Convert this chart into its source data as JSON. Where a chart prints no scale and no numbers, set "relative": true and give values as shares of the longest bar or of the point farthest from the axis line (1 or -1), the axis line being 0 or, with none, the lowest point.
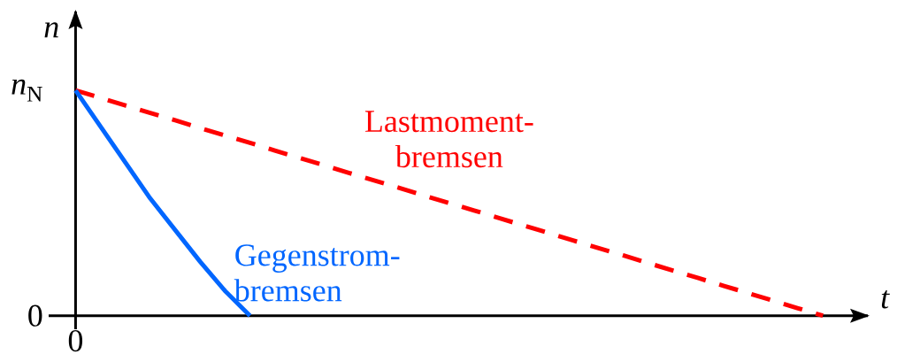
{
  "chart_data": {
    "type": "line",
    "xlabel": "t",
    "ylabel": "n",
    "categories": [
      null,
      null,
      null,
      null,
      null,
      null,
      null,
      null,
      null,
      null,
      null,
      null,
      null,
      null,
      null,
      null,
      null,
      null,
      null,
      null,
      null,
      null,
      null,
      null,
      null,
      null,
      null,
      null,
      null,
      null,
      null
    ],
    "relative": true,
    "annotations": [
      "0",
      "*n*$_{N}$",
      "0"
    ],
    "series": [
      {
        "name": "Lastmoment-bremsen",
        "color": "#ff0000",
        "line_style": "dashed",
        "values": [
          1,
          0.967,
          0.933,
          0.9,
          0.867,
          0.833,
          0.8,
          0.767,
          0.733,
          0.7,
          0.667,
          0.633,
          0.6,
          0.567,
          0.533,
          0.5,
          0.467,
          0.433,
          0.4,
          0.367,
          0.333,
          0.3,
          0.267,
          0.233,
          0.2,
          0.167,
          0.133,
          0.1,
          0.067,
          0.033,
          0
        ]
      },
      {
        "name": "Gegenstrom-bremsen",
        "color": "#0066ff",
        "line_style": "solid",
        "values": [
          1,
          0.84,
          0.68,
          0.52,
          0.38,
          0.24,
          0.11,
          0,
          null,
          null,
          null,
          null,
          null,
          null,
          null,
          null,
          null,
          null,
          null,
          null,
          null,
          null,
          null,
          null,
          null,
          null,
          null,
          null,
          null,
          null,
          null
        ]
      }
    ]
  }
}
